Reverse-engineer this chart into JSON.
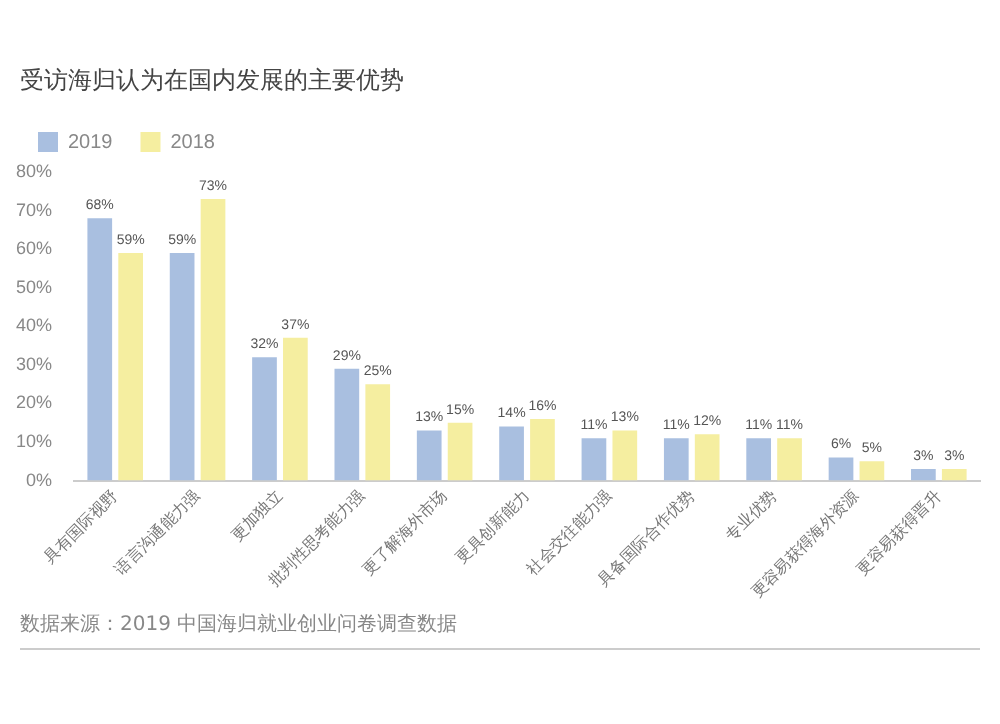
{
  "chart_data": {
    "type": "bar",
    "title": "受访海归认为在国内发展的主要优势",
    "categories": [
      "具有国际视野",
      "语言沟通能力强",
      "更加独立",
      "批判性思考能力强",
      "更了解海外市场",
      "更具创新能力",
      "社会交往能力强",
      "具备国际合作优势",
      "专业优势",
      "更容易获得海外资源",
      "更容易获得晋升"
    ],
    "series": [
      {
        "name": "2019",
        "color": "#a9bfe0",
        "values": [
          68,
          59,
          32,
          29,
          13,
          14,
          11,
          11,
          11,
          6,
          3
        ],
        "value_labels": [
          "68%",
          "59%",
          "32%",
          "29%",
          "13%",
          "14%",
          "11%",
          "11%",
          "11%",
          "6%",
          "3%"
        ]
      },
      {
        "name": "2018",
        "color": "#f5eea0",
        "values": [
          59,
          73,
          37,
          25,
          15,
          16,
          13,
          12,
          11,
          5,
          3
        ],
        "value_labels": [
          "59%",
          "73%",
          "37%",
          "25%",
          "15%",
          "16%",
          "13%",
          "12%",
          "11%",
          "5%",
          "3%"
        ]
      }
    ],
    "ylim": [
      0,
      80
    ],
    "yticks": [
      {
        "value": 0,
        "label": "0%"
      },
      {
        "value": 10,
        "label": "10%"
      },
      {
        "value": 20,
        "label": "20%"
      },
      {
        "value": 30,
        "label": "30%"
      },
      {
        "value": 40,
        "label": "40%"
      },
      {
        "value": 50,
        "label": "50%"
      },
      {
        "value": 60,
        "label": "60%"
      },
      {
        "value": 70,
        "label": "70%"
      },
      {
        "value": 80,
        "label": "80%"
      }
    ],
    "legend": "top left",
    "annotations": [
      "数据来源：2019 中国海归就业创业问卷调查数据"
    ]
  }
}
